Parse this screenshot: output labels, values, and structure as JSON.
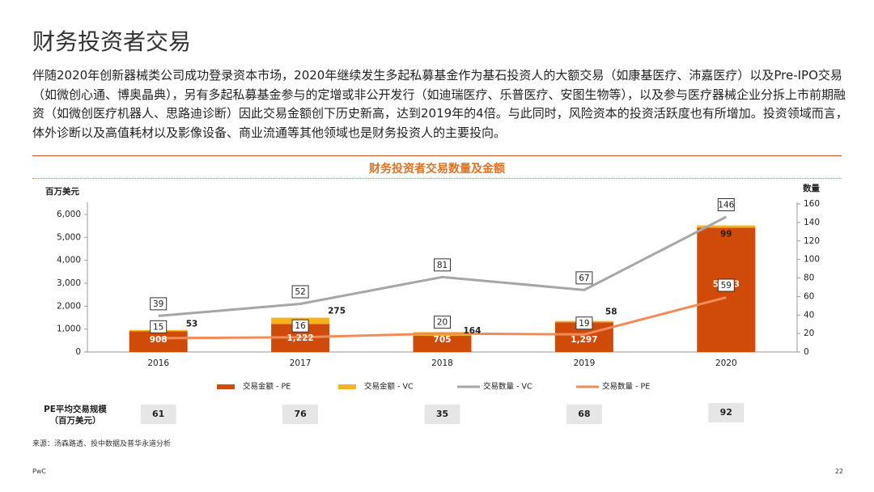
{
  "page": {
    "title": "财务投资者交易",
    "intro": "伴随2020年创新器械类公司成功登录资本市场，2020年继续发生多起私募基金作为基石投资人的大额交易（如康基医疗、沛嘉医疗）以及Pre-IPO交易（如微创心通、博奥晶典），另有多起私募基金参与的定增或非公开发行（如迪瑞医疗、乐普医疗、安图生物等），以及参与医疗器械企业分拆上市前期融资（如微创医疗机器人、思路迪诊断）因此交易金额创下历史新高，达到2019年的4倍。与此同时，风险资本的投资活跃度也有所增加。投资领域而言，体外诊断以及高值耗材以及影像设备、商业流通等其他领域也是财务投资人的主要投向。",
    "source": "来源：汤森路透、投中数据及普华永道分析",
    "brand": "PwC",
    "page_number": "22"
  },
  "chart_data": {
    "type": "bar",
    "title": "财务投资者交易数量及金额",
    "categories": [
      "2016",
      "2017",
      "2018",
      "2019",
      "2020"
    ],
    "y_left": {
      "label": "百万美元",
      "range": [
        0,
        6500
      ],
      "ticks": [
        "0",
        "1,000",
        "2,000",
        "3,000",
        "4,000",
        "5,000",
        "6,000"
      ]
    },
    "y_right": {
      "label": "数量",
      "range": [
        0,
        160
      ],
      "ticks": [
        "0",
        "20",
        "40",
        "60",
        "80",
        "100",
        "120",
        "140",
        "160"
      ]
    },
    "bar_series": [
      {
        "name": "交易金额 - PE",
        "color": "#d04a0a",
        "values": [
          908,
          1222,
          705,
          1297,
          5423
        ],
        "labels": [
          "908",
          "1,222",
          "705",
          "1,297",
          "5,423"
        ]
      },
      {
        "name": "交易金额 - VC",
        "color": "#f5b41e",
        "values": [
          53,
          275,
          164,
          58,
          99
        ],
        "labels": [
          "53",
          "275",
          "164",
          "58",
          "99"
        ]
      }
    ],
    "line_series": [
      {
        "name": "交易数量 - VC",
        "color": "#a6a6a6",
        "values": [
          39,
          52,
          81,
          67,
          146
        ],
        "labels": [
          "39",
          "52",
          "81",
          "67",
          "146"
        ]
      },
      {
        "name": "交易数量 - PE",
        "color": "#f08c5a",
        "values": [
          15,
          16,
          20,
          19,
          59
        ],
        "labels": [
          "15",
          "16",
          "20",
          "19",
          "59"
        ]
      }
    ],
    "legend_position": "bottom",
    "avg_row": {
      "label_line1": "PE平均交易规模",
      "label_line2": "（百万美元）",
      "values": [
        "61",
        "76",
        "35",
        "68",
        "92"
      ]
    }
  }
}
